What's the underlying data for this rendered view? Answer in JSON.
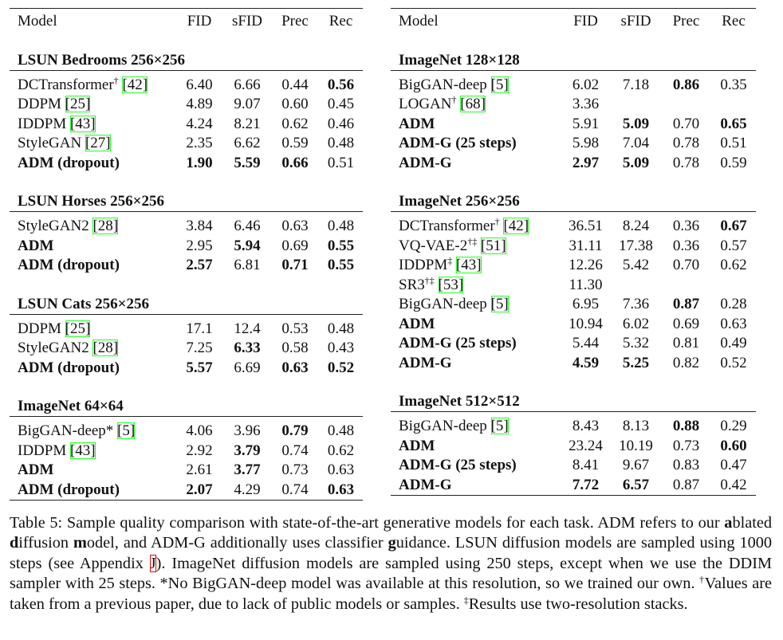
{
  "tables": [
    {
      "header": [
        "Model",
        "FID",
        "sFID",
        "Prec",
        "Rec"
      ],
      "sections": [
        {
          "title": "LSUN Bedrooms 256×256",
          "rows": [
            {
              "model": "DCTransformer",
              "sup": "†",
              "cite": "[42]",
              "cells": [
                "6.40",
                "6.66",
                "0.44",
                "0.56"
              ],
              "bold": [
                4
              ]
            },
            {
              "model": "DDPM",
              "cite": "[25]",
              "cells": [
                "4.89",
                "9.07",
                "0.60",
                "0.45"
              ],
              "bold": []
            },
            {
              "model": "IDDPM",
              "cite": "[43]",
              "cells": [
                "4.24",
                "8.21",
                "0.62",
                "0.46"
              ],
              "bold": []
            },
            {
              "model": "StyleGAN",
              "cite": "[27]",
              "cells": [
                "2.35",
                "6.62",
                "0.59",
                "0.48"
              ],
              "bold": []
            },
            {
              "model": "ADM (dropout)",
              "cells": [
                "1.90",
                "5.59",
                "0.66",
                "0.51"
              ],
              "bold": [
                0,
                1,
                2,
                3
              ]
            }
          ]
        },
        {
          "title": "LSUN Horses 256×256",
          "rows": [
            {
              "model": "StyleGAN2",
              "cite": "[28]",
              "cells": [
                "3.84",
                "6.46",
                "0.63",
                "0.48"
              ],
              "bold": []
            },
            {
              "model": "ADM",
              "cells": [
                "2.95",
                "5.94",
                "0.69",
                "0.55"
              ],
              "bold": [
                0,
                2,
                4
              ]
            },
            {
              "model": "ADM (dropout)",
              "cells": [
                "2.57",
                "6.81",
                "0.71",
                "0.55"
              ],
              "bold": [
                0,
                1,
                3,
                4
              ]
            }
          ]
        },
        {
          "title": "LSUN Cats 256×256",
          "rows": [
            {
              "model": "DDPM",
              "cite": "[25]",
              "cells": [
                "17.1",
                "12.4",
                "0.53",
                "0.48"
              ],
              "bold": []
            },
            {
              "model": "StyleGAN2",
              "cite": "[28]",
              "cells": [
                "7.25",
                "6.33",
                "0.58",
                "0.43"
              ],
              "bold": [
                2
              ]
            },
            {
              "model": "ADM (dropout)",
              "cells": [
                "5.57",
                "6.69",
                "0.63",
                "0.52"
              ],
              "bold": [
                0,
                1,
                3,
                4
              ]
            }
          ]
        },
        {
          "title": "ImageNet 64×64",
          "rows": [
            {
              "model": "BigGAN-deep*",
              "cite": "[5]",
              "cells": [
                "4.06",
                "3.96",
                "0.79",
                "0.48"
              ],
              "bold": [
                3
              ]
            },
            {
              "model": "IDDPM",
              "cite": "[43]",
              "cells": [
                "2.92",
                "3.79",
                "0.74",
                "0.62"
              ],
              "bold": [
                2
              ]
            },
            {
              "model": "ADM",
              "cells": [
                "2.61",
                "3.77",
                "0.73",
                "0.63"
              ],
              "bold": [
                0,
                2
              ]
            },
            {
              "model": "ADM (dropout)",
              "cells": [
                "2.07",
                "4.29",
                "0.74",
                "0.63"
              ],
              "bold": [
                0,
                1,
                4
              ]
            }
          ]
        }
      ]
    },
    {
      "header": [
        "Model",
        "FID",
        "sFID",
        "Prec",
        "Rec"
      ],
      "sections": [
        {
          "title": "ImageNet 128×128",
          "rows": [
            {
              "model": "BigGAN-deep",
              "cite": "[5]",
              "cells": [
                "6.02",
                "7.18",
                "0.86",
                "0.35"
              ],
              "bold": [
                3
              ]
            },
            {
              "model": "LOGAN",
              "sup": "†",
              "cite": "[68]",
              "cells": [
                "3.36",
                null,
                null,
                null
              ],
              "bold": []
            },
            {
              "model": "ADM",
              "cells": [
                "5.91",
                "5.09",
                "0.70",
                "0.65"
              ],
              "bold": [
                0,
                2,
                4
              ]
            },
            {
              "model": "ADM-G (25 steps)",
              "cells": [
                "5.98",
                "7.04",
                "0.78",
                "0.51"
              ],
              "bold": [
                0
              ]
            },
            {
              "model": "ADM-G",
              "cells": [
                "2.97",
                "5.09",
                "0.78",
                "0.59"
              ],
              "bold": [
                0,
                1,
                2
              ]
            }
          ]
        },
        {
          "title": "ImageNet 256×256",
          "rows": [
            {
              "model": "DCTransformer",
              "sup": "†",
              "cite": "[42]",
              "cells": [
                "36.51",
                "8.24",
                "0.36",
                "0.67"
              ],
              "bold": [
                4
              ]
            },
            {
              "model": "VQ-VAE-2",
              "sup": "†‡",
              "cite": "[51]",
              "cells": [
                "31.11",
                "17.38",
                "0.36",
                "0.57"
              ],
              "bold": []
            },
            {
              "model": "IDDPM",
              "sup": "‡",
              "cite": "[43]",
              "cells": [
                "12.26",
                "5.42",
                "0.70",
                "0.62"
              ],
              "bold": []
            },
            {
              "model": "SR3",
              "sup": "†‡",
              "cite": "[53]",
              "cells": [
                "11.30",
                null,
                null,
                null
              ],
              "bold": []
            },
            {
              "model": "BigGAN-deep",
              "cite": "[5]",
              "cells": [
                "6.95",
                "7.36",
                "0.87",
                "0.28"
              ],
              "bold": [
                3
              ]
            },
            {
              "model": "ADM",
              "cells": [
                "10.94",
                "6.02",
                "0.69",
                "0.63"
              ],
              "bold": [
                0
              ]
            },
            {
              "model": "ADM-G (25 steps)",
              "cells": [
                "5.44",
                "5.32",
                "0.81",
                "0.49"
              ],
              "bold": [
                0
              ]
            },
            {
              "model": "ADM-G",
              "cells": [
                "4.59",
                "5.25",
                "0.82",
                "0.52"
              ],
              "bold": [
                0,
                1,
                2
              ]
            }
          ]
        },
        {
          "title": "ImageNet 512×512",
          "rows": [
            {
              "model": "BigGAN-deep",
              "cite": "[5]",
              "cells": [
                "8.43",
                "8.13",
                "0.88",
                "0.29"
              ],
              "bold": [
                3
              ]
            },
            {
              "model": "ADM",
              "cells": [
                "23.24",
                "10.19",
                "0.73",
                "0.60"
              ],
              "bold": [
                0,
                4
              ]
            },
            {
              "model": "ADM-G (25 steps)",
              "cells": [
                "8.41",
                "9.67",
                "0.83",
                "0.47"
              ],
              "bold": [
                0
              ]
            },
            {
              "model": "ADM-G",
              "cells": [
                "7.72",
                "6.57",
                "0.87",
                "0.42"
              ],
              "bold": [
                0,
                1,
                2
              ]
            }
          ]
        }
      ]
    }
  ],
  "caption": [
    {
      "text": "Table 5: Sample quality comparison with state-of-the-art generative models for each task. ADM refers to our "
    },
    {
      "text": "a",
      "style": "bold"
    },
    {
      "text": "blated "
    },
    {
      "text": "d",
      "style": "bold"
    },
    {
      "text": "iffusion "
    },
    {
      "text": "m",
      "style": "bold"
    },
    {
      "text": "odel, and ADM-G additionally uses classifier "
    },
    {
      "text": "g",
      "style": "bold"
    },
    {
      "text": "uidance. LSUN diffusion models are sampled using 1000 steps (see Appendix "
    },
    {
      "text": "J",
      "style": "link"
    },
    {
      "text": "). ImageNet diffusion models are sampled using 250 steps, except when we use the DDIM sampler with 25 steps. *No BigGAN-deep model was available at this resolution, so we trained our own. "
    },
    {
      "text": "†",
      "style": "sup"
    },
    {
      "text": "Values are taken from a previous paper, due to lack of public models or samples. "
    },
    {
      "text": "‡",
      "style": "sup"
    },
    {
      "text": "Results use two-resolution stacks."
    }
  ]
}
